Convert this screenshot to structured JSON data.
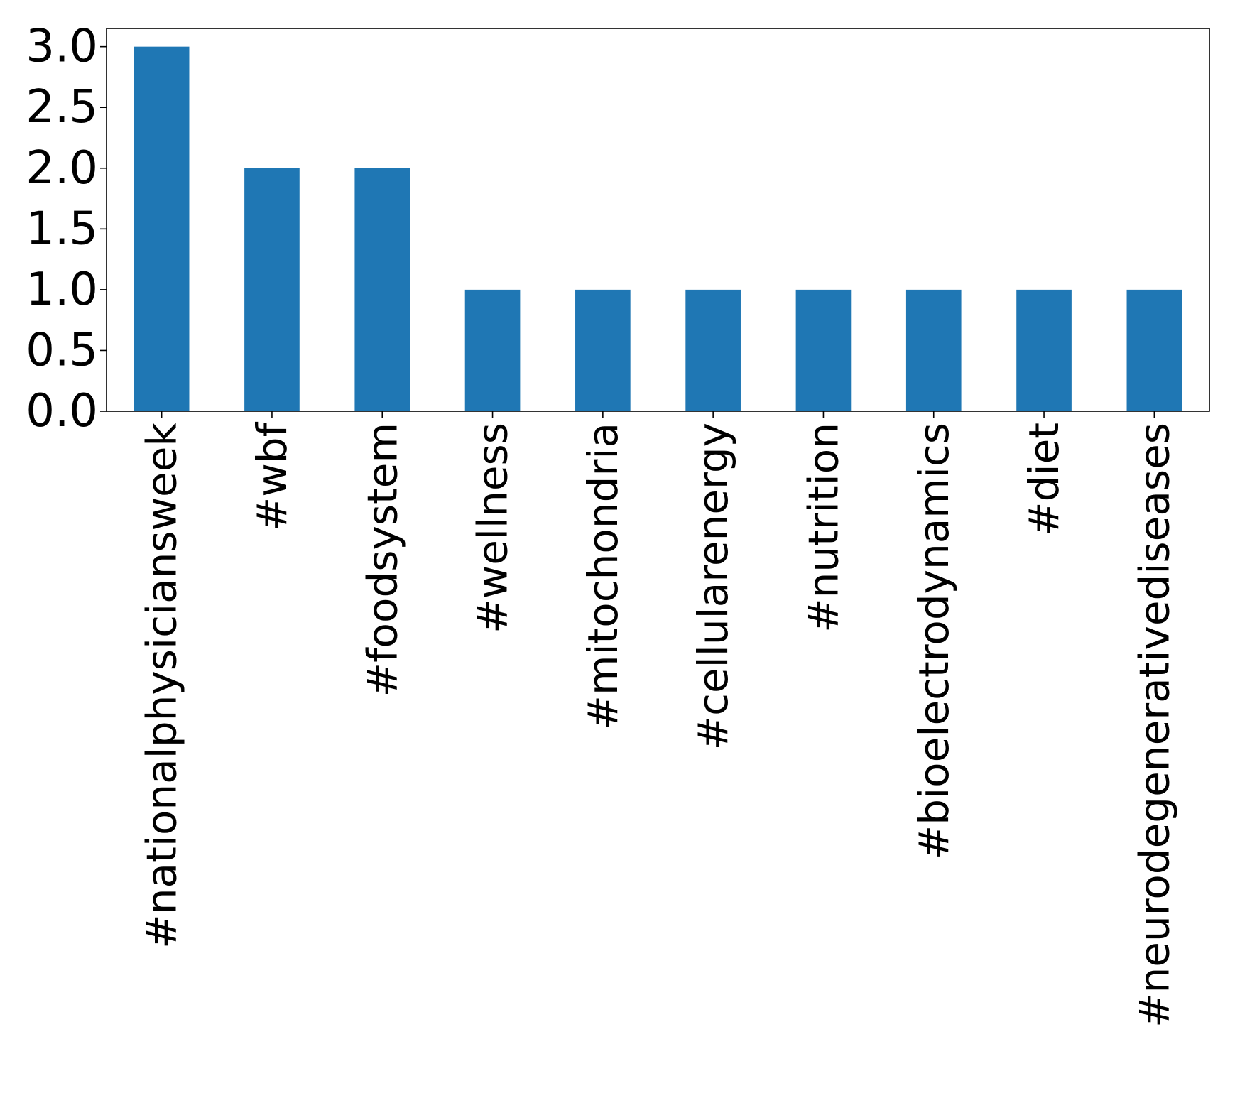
{
  "chart_data": {
    "type": "bar",
    "categories": [
      "#nationalphysiciansweek",
      "#wbf",
      "#foodsystem",
      "#wellness",
      "#mitochondria",
      "#cellularenergy",
      "#nutrition",
      "#bioelectrodynamics",
      "#diet",
      "#neurodegenerativediseases"
    ],
    "values": [
      3,
      2,
      2,
      1,
      1,
      1,
      1,
      1,
      1,
      1
    ],
    "title": "",
    "xlabel": "",
    "ylabel": "",
    "ylim": [
      0,
      3.15
    ],
    "yticks": [
      "0.0",
      "0.5",
      "1.0",
      "1.5",
      "2.0",
      "2.5",
      "3.0"
    ],
    "grid": false,
    "bar_color": "#1f77b4"
  }
}
